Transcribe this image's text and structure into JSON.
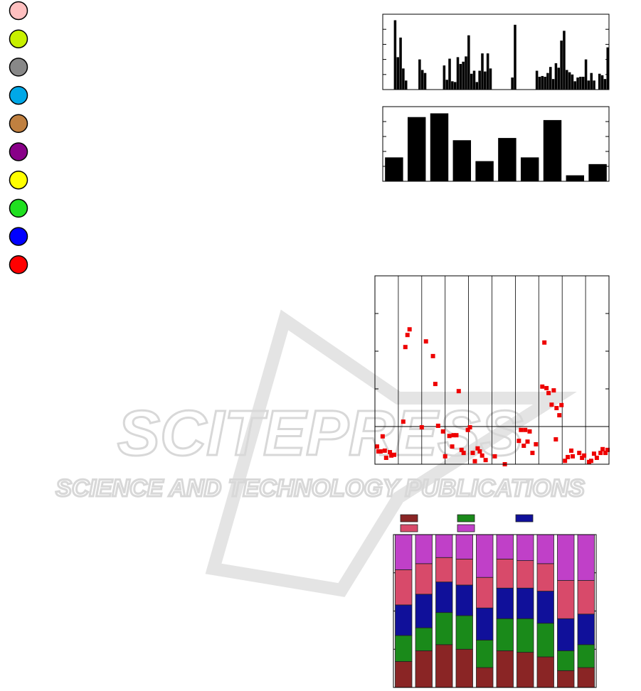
{
  "legend_markers": [
    "#ffc0c0",
    "#c8f000",
    "#888888",
    "#00a8e8",
    "#c08040",
    "#880088",
    "#ffff00",
    "#20e020",
    "#0000ff",
    "#ff0000"
  ],
  "watermark": {
    "title": "SCITEPRESS",
    "subtitle": "SCIENCE AND TECHNOLOGY PUBLICATIONS"
  },
  "chart_data": [
    {
      "type": "bar",
      "color": "#000000",
      "ylim": [
        0,
        10
      ],
      "yticks": [
        0,
        2,
        4,
        6,
        8,
        10
      ],
      "values": [
        0,
        0,
        0,
        0,
        9.2,
        4.3,
        6.9,
        2.8,
        1.2,
        0,
        0,
        0,
        0,
        4,
        2.6,
        2.2,
        0,
        0,
        0,
        0,
        0,
        0,
        3.2,
        1.3,
        4.1,
        1.1,
        1,
        4.3,
        3.4,
        3.7,
        4.4,
        7.2,
        2.1,
        2.5,
        1,
        2.5,
        4.8,
        2.4,
        4.8,
        2.8,
        0,
        0,
        0,
        0,
        0,
        0,
        0,
        1.6,
        8.6,
        0,
        0,
        0,
        0,
        0,
        0,
        0,
        2.5,
        1.7,
        1.8,
        1.7,
        2.2,
        3,
        1.4,
        3.5,
        2.9,
        6.5,
        7.8,
        2.6,
        2.3,
        2,
        1.1,
        1.6,
        1.7,
        1.7,
        4,
        1.2,
        2.2,
        1.2,
        0,
        2.1,
        1.9,
        1.4,
        5.6
      ]
    },
    {
      "type": "bar",
      "color": "#000000",
      "ylim": [
        0,
        10
      ],
      "yticks": [
        0,
        2,
        4,
        6,
        8,
        10
      ],
      "values": [
        3.2,
        8.6,
        9.1,
        5.5,
        2.7,
        5.8,
        3.2,
        8.2,
        0.8,
        2.3
      ]
    },
    {
      "type": "scatter",
      "color": "#ee0000",
      "xlim": [
        0,
        10
      ],
      "ylim": [
        -10,
        40
      ],
      "xticks": [
        0,
        1,
        2,
        3,
        4,
        5,
        6,
        7,
        8,
        9,
        10
      ],
      "yticks": [
        -10,
        0,
        10,
        20,
        30,
        40
      ],
      "grid_x": true,
      "reference_y": 0,
      "x": [
        0.09,
        0.15,
        0.33,
        0.24,
        0.42,
        0.48,
        0.64,
        0.7,
        0.82,
        1.21,
        1.3,
        1.39,
        1.48,
        2,
        2.18,
        2.48,
        2.58,
        2.7,
        2.91,
        3,
        3.18,
        3.3,
        3.36,
        3.48,
        3.58,
        3.7,
        3.79,
        3.97,
        4.06,
        4.18,
        4.27,
        4.39,
        4.48,
        4.58,
        4.73,
        5.12,
        5.55,
        6.15,
        6.24,
        6.36,
        6.42,
        6.52,
        6.61,
        6.73,
        6.88,
        7.15,
        7.24,
        7.33,
        7.42,
        7.55,
        7.64,
        7.73,
        7.76,
        7.88,
        7.97,
        8.12,
        8.24,
        8.39,
        8.45,
        8.73,
        8.85,
        8.94,
        9.15,
        9.24,
        9.36,
        9.48,
        9.64,
        9.73,
        9.85,
        9.94
      ],
      "values": [
        -5.3,
        -6.6,
        -2.6,
        -6.6,
        -6.4,
        -8.3,
        -6.8,
        -7.7,
        -7.5,
        1.3,
        21.1,
        24.3,
        25.8,
        -0.2,
        22.6,
        18.7,
        11.3,
        0.2,
        -1.3,
        -7.9,
        -2.5,
        -5.3,
        -2.3,
        -2.3,
        9.4,
        -6.2,
        -7,
        -0.9,
        -0.2,
        -7,
        -9.2,
        -5.8,
        -6.6,
        -7.7,
        -8.9,
        -7.9,
        -10,
        -3.8,
        -0.9,
        -5.1,
        -0.9,
        -4,
        -1.3,
        -7,
        -4.7,
        10.6,
        22.3,
        10.2,
        8.9,
        5.8,
        9.6,
        -3.4,
        4.9,
        3,
        5.7,
        -9.1,
        -8.1,
        -6.4,
        -7.9,
        -7,
        -8.3,
        -7.7,
        -9.4,
        -9.1,
        -7.2,
        -8.3,
        -7,
        -6,
        -7,
        -6.2
      ]
    },
    {
      "type": "stacked_bar",
      "ylim": [
        0,
        100
      ],
      "yticks": [
        0,
        25,
        50,
        75,
        100
      ],
      "series": [
        {
          "color": "#8a2525",
          "values": [
            17,
            24,
            28,
            25,
            13,
            24,
            23,
            20,
            11,
            13
          ]
        },
        {
          "color": "#1a8a1a",
          "values": [
            17,
            15,
            21,
            22,
            18,
            21,
            22,
            22,
            13,
            15
          ]
        },
        {
          "color": "#10109a",
          "values": [
            20,
            22,
            20,
            20,
            21,
            20,
            20,
            21,
            21,
            20
          ]
        },
        {
          "color": "#d84a6a",
          "values": [
            23,
            20,
            16,
            17,
            20,
            19,
            18,
            18,
            25,
            22
          ]
        },
        {
          "color": "#c040c8",
          "values": [
            23,
            19,
            15,
            16,
            28,
            16,
            17,
            19,
            30,
            30
          ]
        }
      ]
    }
  ]
}
